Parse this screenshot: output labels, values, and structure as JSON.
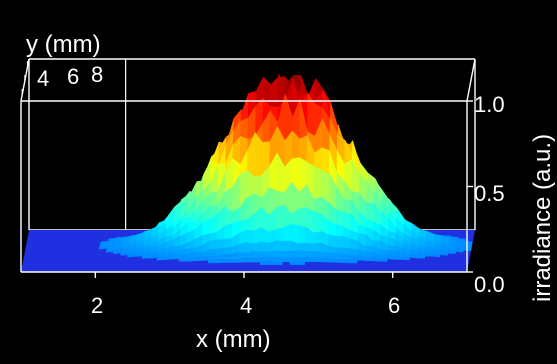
{
  "chart_data": {
    "type": "surface",
    "xlabel": "x (mm)",
    "ylabel": "y (mm)",
    "zlabel": "irradiance (a.u.)",
    "x_ticks": [
      "2",
      "4",
      "6"
    ],
    "y_ticks": [
      "4",
      "6",
      "8"
    ],
    "z_ticks": [
      "0.0",
      "0.5",
      "1.0"
    ],
    "x_range": [
      1,
      7
    ],
    "y_range": [
      3,
      9
    ],
    "z_range": [
      0,
      1
    ],
    "beam": {
      "peak_x_mm": 4.5,
      "peak_y_mm": 6.5,
      "peak_irradiance": 1.0,
      "sigma_x_mm": 0.85,
      "sigma_y_mm": 0.85,
      "noise_level": 0.12
    },
    "grid": false,
    "box": true,
    "colormap": "jet",
    "colors": {
      "background": "#000000",
      "text": "#ffffff",
      "box": "#ffffff"
    }
  }
}
